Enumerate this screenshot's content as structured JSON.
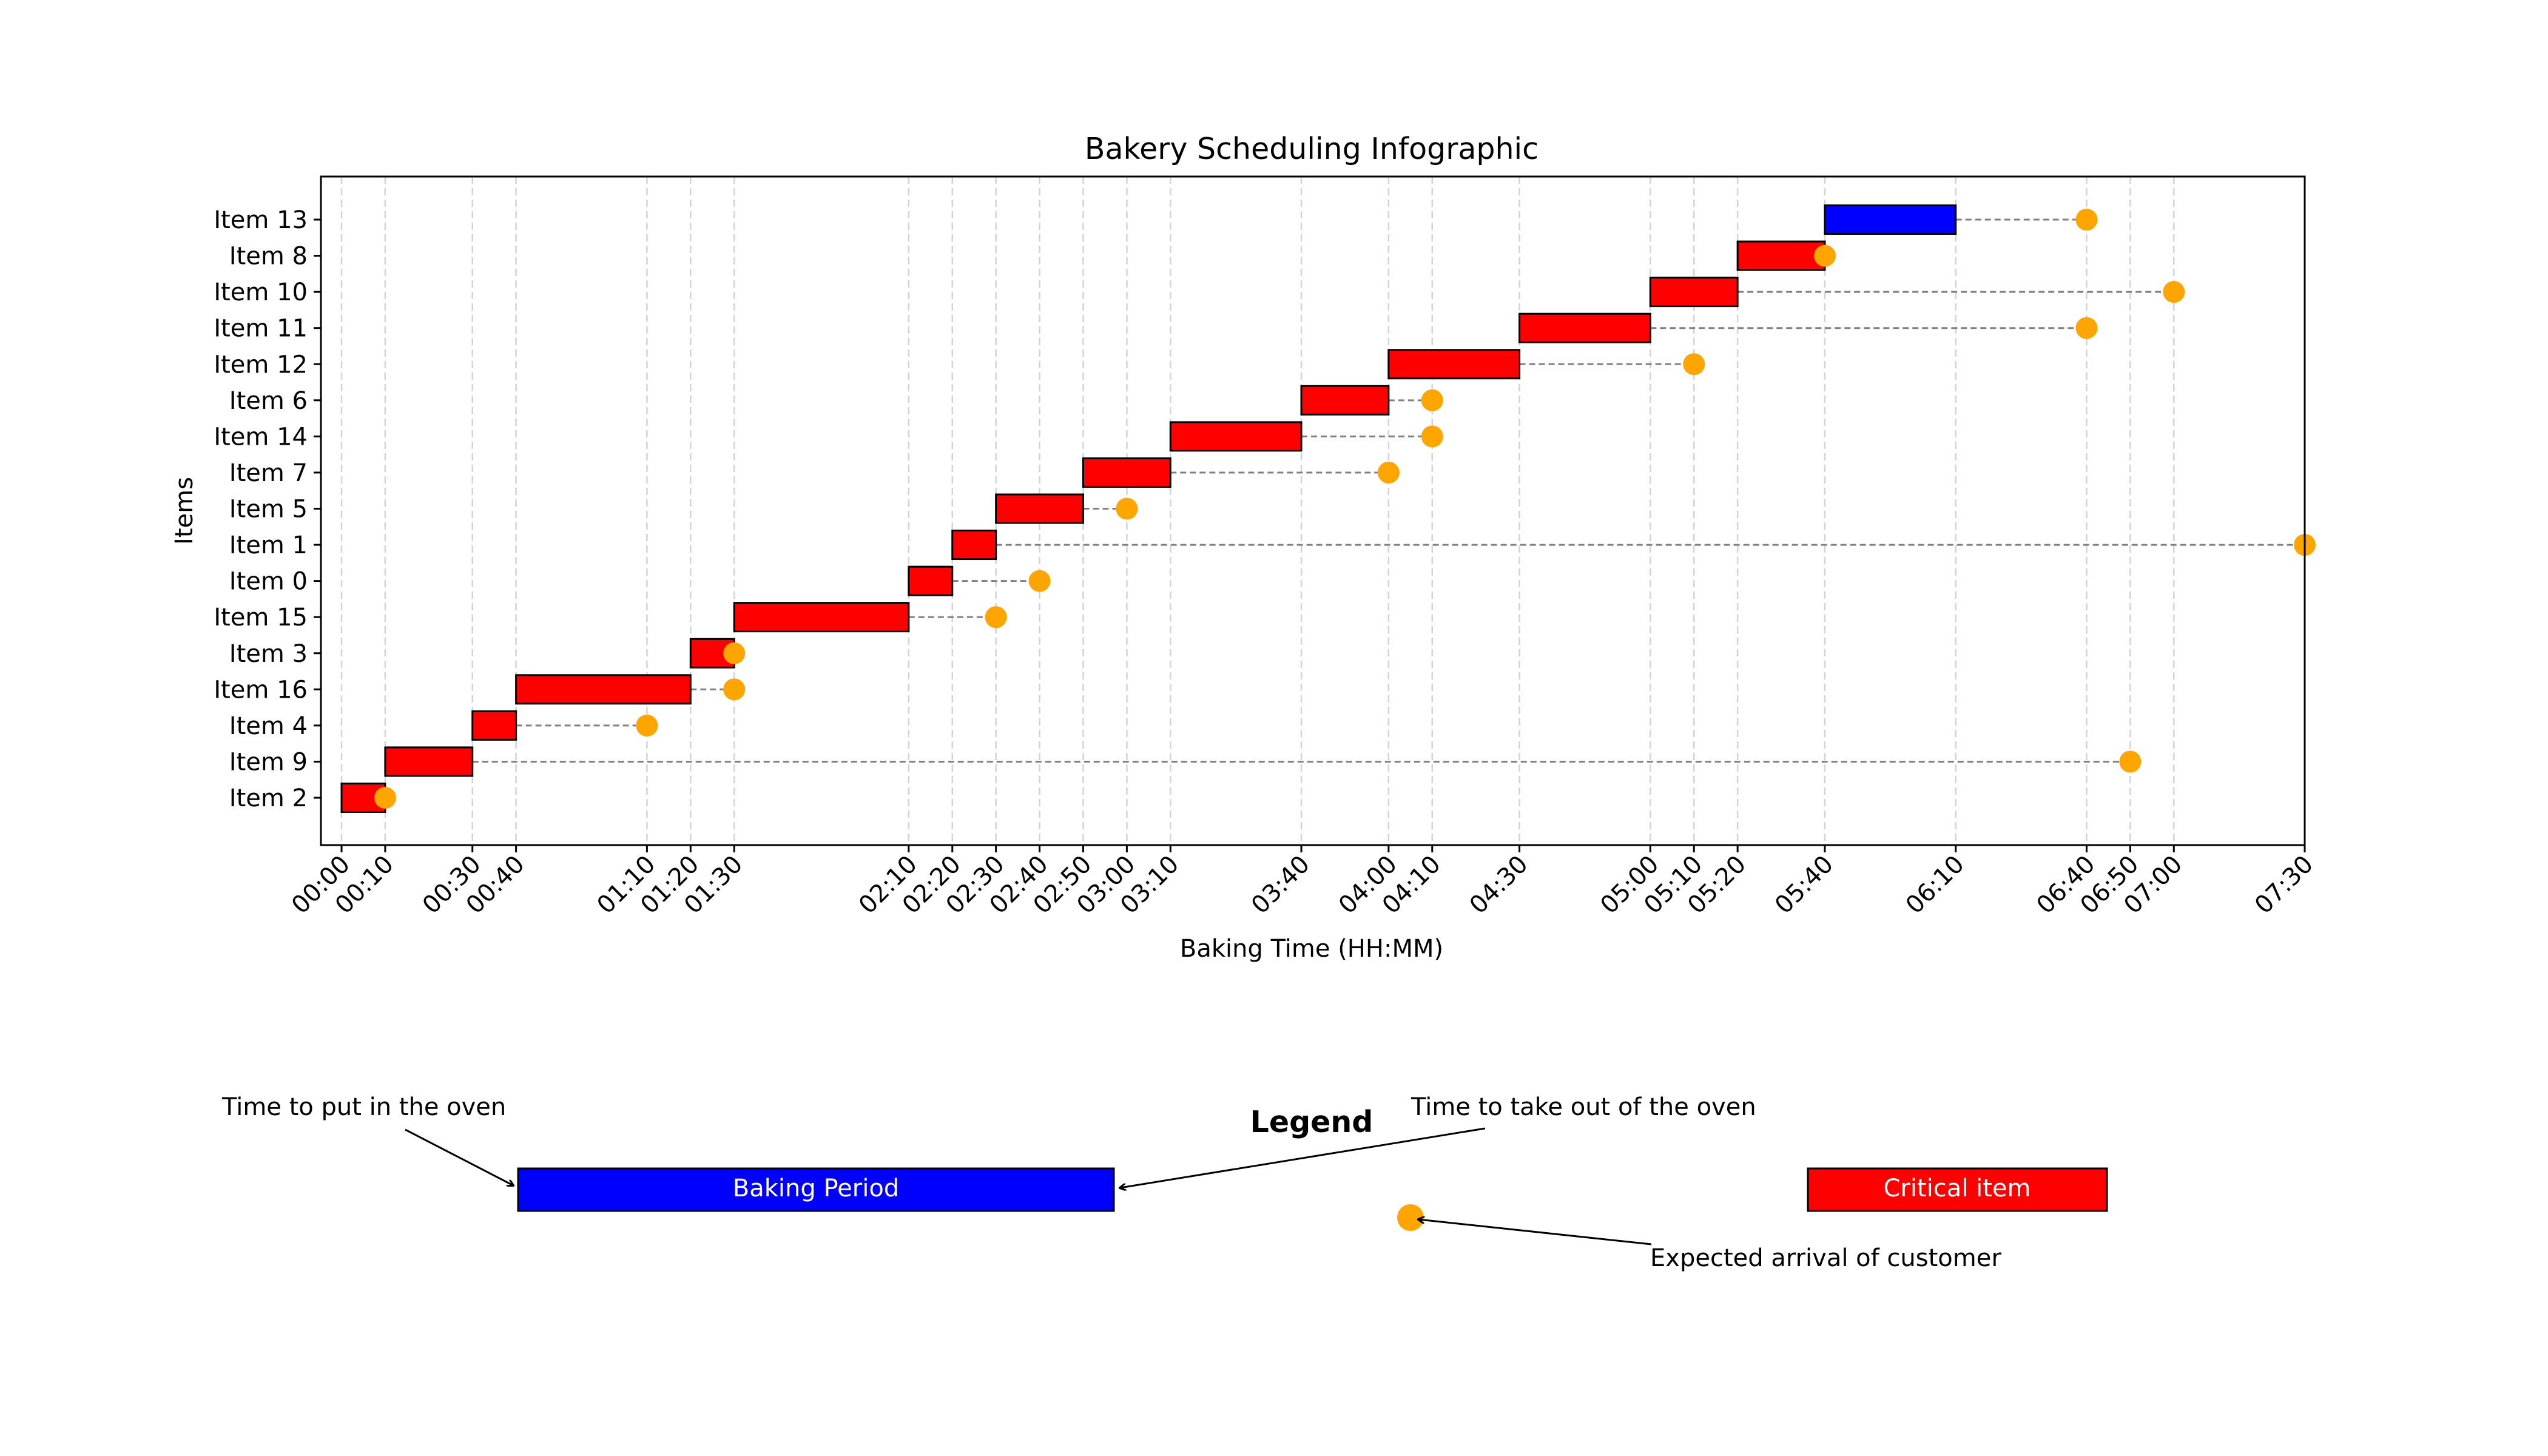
{
  "chart_data": {
    "type": "gantt",
    "title": "Bakery Scheduling Infographic",
    "xlabel": "Baking Time (HH:MM)",
    "ylabel": "Items",
    "xlim": [
      "00:00",
      "07:30"
    ],
    "grid": "vertical dashed at tick positions",
    "tick_labels": [
      "00:00",
      "00:10",
      "00:30",
      "00:40",
      "01:10",
      "01:20",
      "01:30",
      "02:10",
      "02:20",
      "02:30",
      "02:40",
      "02:50",
      "03:00",
      "03:10",
      "03:40",
      "04:00",
      "04:10",
      "04:30",
      "05:00",
      "05:10",
      "05:20",
      "05:40",
      "06:10",
      "06:40",
      "06:50",
      "07:00",
      "07:30"
    ],
    "items": [
      {
        "label": "Item 2",
        "start": "00:00",
        "end": "00:10",
        "arrival": "00:10",
        "critical": true
      },
      {
        "label": "Item 9",
        "start": "00:10",
        "end": "00:30",
        "arrival": "06:50",
        "critical": true
      },
      {
        "label": "Item 4",
        "start": "00:30",
        "end": "00:40",
        "arrival": "01:10",
        "critical": true
      },
      {
        "label": "Item 16",
        "start": "00:40",
        "end": "01:20",
        "arrival": "01:30",
        "critical": true
      },
      {
        "label": "Item 3",
        "start": "01:20",
        "end": "01:30",
        "arrival": "01:30",
        "critical": true
      },
      {
        "label": "Item 15",
        "start": "01:30",
        "end": "02:10",
        "arrival": "02:30",
        "critical": true
      },
      {
        "label": "Item 0",
        "start": "02:10",
        "end": "02:20",
        "arrival": "02:40",
        "critical": true
      },
      {
        "label": "Item 1",
        "start": "02:20",
        "end": "02:30",
        "arrival": "07:30",
        "critical": true
      },
      {
        "label": "Item 5",
        "start": "02:30",
        "end": "02:50",
        "arrival": "03:00",
        "critical": true
      },
      {
        "label": "Item 7",
        "start": "02:50",
        "end": "03:10",
        "arrival": "04:00",
        "critical": true
      },
      {
        "label": "Item 14",
        "start": "03:10",
        "end": "03:40",
        "arrival": "04:10",
        "critical": true
      },
      {
        "label": "Item 6",
        "start": "03:40",
        "end": "04:00",
        "arrival": "04:10",
        "critical": true
      },
      {
        "label": "Item 12",
        "start": "04:00",
        "end": "04:30",
        "arrival": "05:10",
        "critical": true
      },
      {
        "label": "Item 11",
        "start": "04:30",
        "end": "05:00",
        "arrival": "06:40",
        "critical": true
      },
      {
        "label": "Item 10",
        "start": "05:00",
        "end": "05:20",
        "arrival": "07:00",
        "critical": true
      },
      {
        "label": "Item 8",
        "start": "05:20",
        "end": "05:40",
        "arrival": "05:40",
        "critical": true
      },
      {
        "label": "Item 13",
        "start": "05:40",
        "end": "06:10",
        "arrival": "06:40",
        "critical": false
      }
    ],
    "colors": {
      "critical": "#ff0000",
      "normal": "#0000ff",
      "arrival": "#ffa500",
      "connector": "#808080",
      "grid": "#d3d3d3"
    }
  },
  "legend": {
    "title": "Legend",
    "baking_period": "Baking Period",
    "critical_item": "Critical item",
    "put_in_oven": "Time to put in the oven",
    "take_out_oven": "Time to take out of the oven",
    "customer_arrival": "Expected arrival of customer"
  }
}
